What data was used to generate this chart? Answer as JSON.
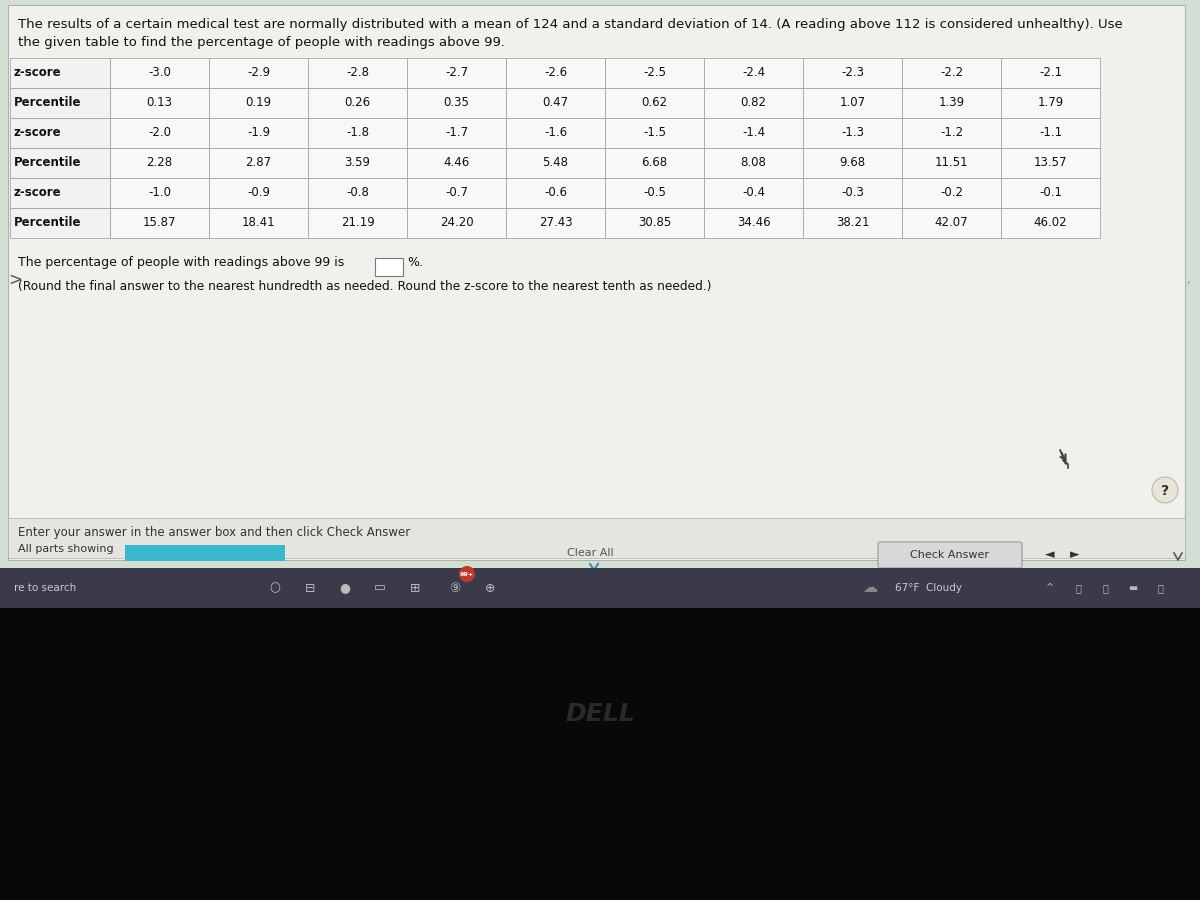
{
  "title_line1": "The results of a certain medical test are normally distributed with a mean of 124 and a standard deviation of 14. (A reading above 112 is considered unhealthy). Use",
  "title_line2": "the given table to find the percentage of people with readings above 99.",
  "table_rows": [
    [
      "z-score",
      "-3.0",
      "-2.9",
      "-2.8",
      "-2.7",
      "-2.6",
      "-2.5",
      "-2.4",
      "-2.3",
      "-2.2",
      "-2.1"
    ],
    [
      "Percentile",
      "0.13",
      "0.19",
      "0.26",
      "0.35",
      "0.47",
      "0.62",
      "0.82",
      "1.07",
      "1.39",
      "1.79"
    ],
    [
      "z-score",
      "-2.0",
      "-1.9",
      "-1.8",
      "-1.7",
      "-1.6",
      "-1.5",
      "-1.4",
      "-1.3",
      "-1.2",
      "-1.1"
    ],
    [
      "Percentile",
      "2.28",
      "2.87",
      "3.59",
      "4.46",
      "5.48",
      "6.68",
      "8.08",
      "9.68",
      "11.51",
      "13.57"
    ],
    [
      "z-score",
      "-1.0",
      "-0.9",
      "-0.8",
      "-0.7",
      "-0.6",
      "-0.5",
      "-0.4",
      "-0.3",
      "-0.2",
      "-0.1"
    ],
    [
      "Percentile",
      "15.87",
      "18.41",
      "21.19",
      "24.20",
      "27.43",
      "30.85",
      "34.46",
      "38.21",
      "42.07",
      "46.02"
    ]
  ],
  "answer_text": "The percentage of people with readings above 99 is",
  "answer_suffix": "%.",
  "note_text": "(Round the final answer to the nearest hundredth as needed. Round the z-score to the nearest tenth as needed.)",
  "bottom_text1": "Enter your answer in the answer box and then click Check Answer",
  "bottom_text2": "All parts showing",
  "button_clear": "Clear All",
  "button_check": "Check Answer",
  "bg_color_top": "#e8ece8",
  "bg_color_main": "#d4dfd4",
  "table_cell_bg": "#f8f8f8",
  "label_cell_bg": "#f0f0f0",
  "bottom_panel_bg": "#e4e4e0",
  "taskbar_bg": "#3a3a4a",
  "input_box_color": "#ffffff",
  "teal_bar_color": "#3ab8cc",
  "check_btn_color": "#d8d8d8",
  "screen_border": "#888888",
  "taskbar_separator": "#5a5a6a",
  "white_content_bg": "#f0f0ec"
}
